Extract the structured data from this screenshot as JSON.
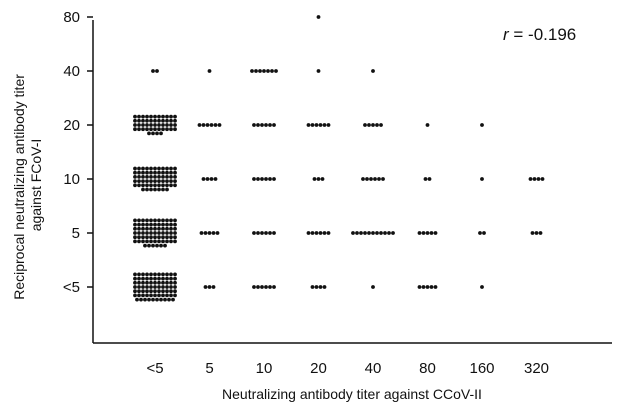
{
  "chart_data": {
    "type": "scatter",
    "title": "",
    "annotation": {
      "symbol": "r",
      "text": " = -0.196"
    },
    "xlabel": "Neutralizing antibody titer against CCoV-II",
    "ylabel_lines": [
      "Reciprocal neutralizing antibody titer",
      "against FCoV-I"
    ],
    "x_categories": [
      "<5",
      "5",
      "10",
      "20",
      "40",
      "80",
      "160",
      "320"
    ],
    "y_categories": [
      "<5",
      "5",
      "10",
      "20",
      "40",
      "80"
    ],
    "grid": false,
    "marker_color": "#111111",
    "points": [
      {
        "x": "<5",
        "y": "<5",
        "count": 76
      },
      {
        "x": "<5",
        "y": "5",
        "count": 72
      },
      {
        "x": "<5",
        "y": "10",
        "count": 62
      },
      {
        "x": "<5",
        "y": "20",
        "count": 48
      },
      {
        "x": "<5",
        "y": "40",
        "count": 2
      },
      {
        "x": "5",
        "y": "<5",
        "count": 3
      },
      {
        "x": "5",
        "y": "5",
        "count": 5
      },
      {
        "x": "5",
        "y": "10",
        "count": 4
      },
      {
        "x": "5",
        "y": "20",
        "count": 6
      },
      {
        "x": "5",
        "y": "40",
        "count": 1
      },
      {
        "x": "10",
        "y": "<5",
        "count": 6
      },
      {
        "x": "10",
        "y": "5",
        "count": 6
      },
      {
        "x": "10",
        "y": "10",
        "count": 6
      },
      {
        "x": "10",
        "y": "20",
        "count": 6
      },
      {
        "x": "10",
        "y": "40",
        "count": 7
      },
      {
        "x": "20",
        "y": "<5",
        "count": 4
      },
      {
        "x": "20",
        "y": "5",
        "count": 6
      },
      {
        "x": "20",
        "y": "10",
        "count": 3
      },
      {
        "x": "20",
        "y": "20",
        "count": 6
      },
      {
        "x": "20",
        "y": "40",
        "count": 1
      },
      {
        "x": "20",
        "y": "80",
        "count": 1
      },
      {
        "x": "40",
        "y": "<5",
        "count": 1
      },
      {
        "x": "40",
        "y": "5",
        "count": 11
      },
      {
        "x": "40",
        "y": "10",
        "count": 6
      },
      {
        "x": "40",
        "y": "20",
        "count": 5
      },
      {
        "x": "40",
        "y": "40",
        "count": 1
      },
      {
        "x": "80",
        "y": "<5",
        "count": 5
      },
      {
        "x": "80",
        "y": "5",
        "count": 5
      },
      {
        "x": "80",
        "y": "10",
        "count": 2
      },
      {
        "x": "80",
        "y": "20",
        "count": 1
      },
      {
        "x": "160",
        "y": "<5",
        "count": 1
      },
      {
        "x": "160",
        "y": "5",
        "count": 2
      },
      {
        "x": "160",
        "y": "10",
        "count": 1
      },
      {
        "x": "160",
        "y": "20",
        "count": 1
      },
      {
        "x": "320",
        "y": "5",
        "count": 3
      },
      {
        "x": "320",
        "y": "10",
        "count": 4
      }
    ]
  }
}
